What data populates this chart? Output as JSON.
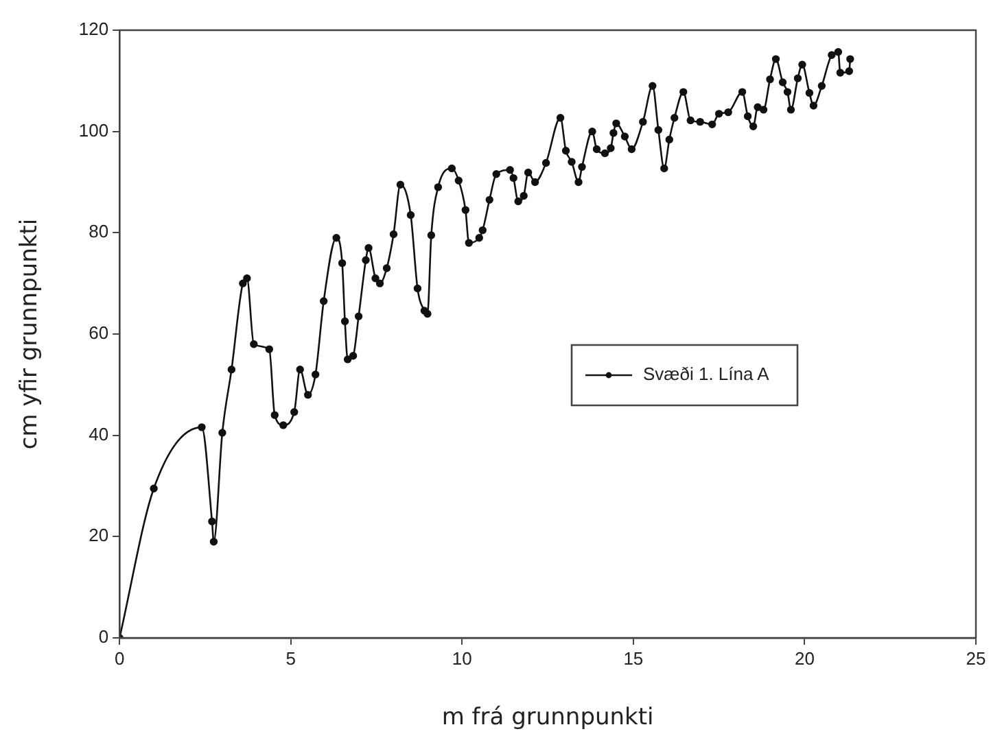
{
  "chart_data": {
    "type": "line",
    "xlabel": "m frá grunnpunkti",
    "ylabel": "cm yfir grunnpunkti",
    "xlim": [
      0,
      25
    ],
    "ylim": [
      0,
      120
    ],
    "xticks": [
      0,
      5,
      10,
      15,
      20,
      25
    ],
    "yticks": [
      0,
      20,
      40,
      60,
      80,
      100,
      120
    ],
    "grid": false,
    "legend": "right",
    "marker": "circle",
    "line_style": "solid",
    "series": [
      {
        "name": "Svæði 1. Lína A",
        "color": "#111111",
        "x": [
          0,
          1.0,
          2.4,
          2.7,
          2.75,
          3.0,
          3.27,
          3.6,
          3.72,
          3.92,
          4.37,
          4.53,
          4.78,
          5.1,
          5.27,
          5.5,
          5.72,
          5.96,
          6.33,
          6.5,
          6.58,
          6.66,
          6.82,
          6.98,
          7.19,
          7.27,
          7.47,
          7.6,
          7.8,
          8.0,
          8.2,
          8.5,
          8.7,
          8.9,
          8.99,
          9.1,
          9.3,
          9.7,
          9.9,
          10.1,
          10.2,
          10.5,
          10.6,
          10.8,
          11.0,
          11.4,
          11.5,
          11.64,
          11.8,
          11.93,
          12.13,
          12.45,
          12.87,
          13.03,
          13.2,
          13.4,
          13.5,
          13.8,
          13.93,
          14.17,
          14.34,
          14.42,
          14.5,
          14.75,
          14.95,
          15.28,
          15.56,
          15.73,
          15.9,
          16.05,
          16.2,
          16.46,
          16.67,
          16.95,
          17.3,
          17.5,
          17.77,
          18.18,
          18.34,
          18.5,
          18.63,
          18.8,
          18.99,
          19.16,
          19.36,
          19.5,
          19.6,
          19.8,
          19.93,
          20.14,
          20.26,
          20.5,
          20.79,
          20.98,
          21.04,
          21.3,
          21.33
        ],
        "values": [
          0,
          29.5,
          41.6,
          23,
          19,
          40.5,
          53,
          70,
          71,
          58,
          57,
          44,
          42,
          44.6,
          53,
          48,
          52,
          66.5,
          79,
          74,
          62.5,
          55,
          55.7,
          63.5,
          74.6,
          77,
          71,
          70,
          73,
          79.7,
          89.5,
          83.5,
          69,
          64.6,
          64,
          79.5,
          89,
          92.7,
          90.3,
          84.5,
          78,
          79,
          80.5,
          86.5,
          91.6,
          92.4,
          90.8,
          86.2,
          87.3,
          91.9,
          90,
          93.8,
          102.7,
          96.2,
          94,
          90,
          93,
          100,
          96.5,
          95.7,
          96.7,
          99.7,
          101.6,
          99,
          96.5,
          101.9,
          109,
          100.3,
          92.7,
          98.4,
          102.7,
          107.8,
          102.2,
          101.9,
          101.4,
          103.5,
          103.8,
          107.8,
          103,
          101,
          104.8,
          104.3,
          110.3,
          114.3,
          109.7,
          107.8,
          104.3,
          110.5,
          113.2,
          107.6,
          105.1,
          109,
          115.1,
          115.7,
          111.6,
          111.9,
          114.3
        ]
      }
    ]
  }
}
